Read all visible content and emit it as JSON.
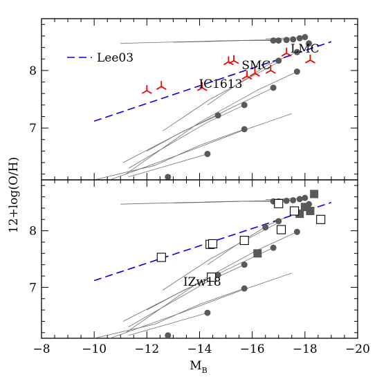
{
  "chart_data": {
    "type": "scatter",
    "xlabel": "M",
    "xlabel_sub": "B",
    "ylabel": "12+log(O/H)",
    "xlim": [
      -8,
      -20
    ],
    "x_ticks": [
      -8,
      -10,
      -12,
      -14,
      -16,
      -18,
      -20
    ],
    "x_tick_labels": [
      "−8",
      "−10",
      "−12",
      "−14",
      "−16",
      "−18",
      "−20"
    ],
    "panels": [
      {
        "ylim": [
          6.1,
          8.9
        ],
        "y_ticks": [
          7,
          8
        ],
        "y_tick_labels": [
          "7",
          "8"
        ],
        "legend": {
          "label": "Lee03",
          "position": "top-left"
        },
        "annotations": [
          {
            "text": "LMC",
            "x": -18.0,
            "y": 8.31
          },
          {
            "text": "SMC",
            "x": -16.15,
            "y": 8.02
          },
          {
            "text": "IC1613",
            "x": -14.8,
            "y": 7.7
          }
        ],
        "lee03_fit": {
          "x": [
            -10,
            -19
          ],
          "y": [
            7.12,
            8.5
          ]
        },
        "model_tracks": [
          {
            "x": [
              -16.8,
              -15.6,
              -13.5,
              -11.8,
              -11.0
            ],
            "y": [
              8.52,
              8.52,
              8.5,
              8.48,
              8.47
            ]
          },
          {
            "x": [
              -17.0,
              -15.6,
              -14.0,
              -13.0
            ],
            "y": [
              8.53,
              8.52,
              8.5,
              8.49
            ]
          },
          {
            "x": [
              -17.6,
              -16.5,
              -15.2,
              -14.2
            ],
            "y": [
              8.54,
              8.53,
              8.52,
              8.51
            ]
          },
          {
            "x": [
              -17.8,
              -17.2,
              -16.5
            ],
            "y": [
              8.57,
              8.56,
              8.55
            ]
          },
          {
            "x": [
              -18.05,
              -17.9
            ],
            "y": [
              8.6,
              8.59
            ]
          },
          {
            "x": [
              -17.7,
              -16.6,
              -15.4,
              -14.3
            ],
            "y": [
              8.32,
              8.1,
              7.75,
              7.4
            ]
          },
          {
            "x": [
              -17.1,
              -16.0,
              -14.4,
              -12.6
            ],
            "y": [
              8.17,
              7.9,
              7.5,
              6.95
            ]
          },
          {
            "x": [
              -17.7,
              -16.2,
              -14.0,
              -11.2
            ],
            "y": [
              7.98,
              7.66,
              7.1,
              6.2
            ]
          },
          {
            "x": [
              -16.8,
              -15.2,
              -13.2,
              -11.1
            ],
            "y": [
              7.7,
              7.35,
              6.9,
              6.4
            ]
          },
          {
            "x": [
              -14.7,
              -13.4,
              -12.0
            ],
            "y": [
              7.22,
              6.95,
              6.6
            ]
          },
          {
            "x": [
              -15.7,
              -14.3,
              -12.8,
              -11.3
            ],
            "y": [
              7.4,
              7.1,
              6.7,
              6.3
            ]
          },
          {
            "x": [
              -15.7,
              -14.0,
              -12.3,
              -10.0
            ],
            "y": [
              6.98,
              6.7,
              6.35,
              6.1
            ]
          },
          {
            "x": [
              -17.5,
              -15.6,
              -13.3,
              -10.6
            ],
            "y": [
              7.25,
              6.95,
              6.55,
              6.1
            ]
          },
          {
            "x": [
              -14.3,
              -12.8,
              -11.3
            ],
            "y": [
              6.55,
              6.35,
              6.15
            ]
          }
        ],
        "circles": [
          {
            "x": -16.8,
            "y": 8.52
          },
          {
            "x": -17.0,
            "y": 8.52
          },
          {
            "x": -17.3,
            "y": 8.53
          },
          {
            "x": -17.55,
            "y": 8.54
          },
          {
            "x": -17.8,
            "y": 8.56
          },
          {
            "x": -18.0,
            "y": 8.58
          },
          {
            "x": -18.15,
            "y": 8.47
          },
          {
            "x": -17.7,
            "y": 8.32
          },
          {
            "x": -17.0,
            "y": 8.17
          },
          {
            "x": -17.7,
            "y": 7.98
          },
          {
            "x": -16.8,
            "y": 7.7
          },
          {
            "x": -14.7,
            "y": 7.22
          },
          {
            "x": -15.7,
            "y": 7.4
          },
          {
            "x": -15.7,
            "y": 6.98
          },
          {
            "x": -14.3,
            "y": 6.55
          },
          {
            "x": -12.8,
            "y": 6.15
          }
        ],
        "observed_tripods": [
          {
            "x": -12.0,
            "y": 7.65
          },
          {
            "x": -12.55,
            "y": 7.72
          },
          {
            "x": -14.1,
            "y": 7.7
          },
          {
            "x": -15.1,
            "y": 8.15
          },
          {
            "x": -15.3,
            "y": 8.17
          },
          {
            "x": -15.8,
            "y": 7.9
          },
          {
            "x": -16.1,
            "y": 7.95
          },
          {
            "x": -16.7,
            "y": 8.0
          },
          {
            "x": -17.3,
            "y": 8.3
          },
          {
            "x": -18.2,
            "y": 8.18
          }
        ]
      },
      {
        "ylim": [
          6.1,
          8.9
        ],
        "y_ticks": [
          7,
          8
        ],
        "y_tick_labels": [
          "7",
          "8"
        ],
        "annotations": [
          {
            "text": "IZw18",
            "x": -14.1,
            "y": 7.03
          }
        ],
        "lee03_fit": {
          "x": [
            -10,
            -19
          ],
          "y": [
            7.12,
            8.5
          ]
        },
        "model_tracks": [
          {
            "x": [
              -16.8,
              -15.6,
              -13.5,
              -11.8,
              -11.0
            ],
            "y": [
              8.52,
              8.52,
              8.5,
              8.48,
              8.47
            ]
          },
          {
            "x": [
              -17.0,
              -15.6,
              -14.0,
              -13.0
            ],
            "y": [
              8.53,
              8.52,
              8.5,
              8.49
            ]
          },
          {
            "x": [
              -17.6,
              -16.5,
              -15.2,
              -14.2
            ],
            "y": [
              8.54,
              8.53,
              8.52,
              8.51
            ]
          },
          {
            "x": [
              -17.8,
              -17.2,
              -16.5
            ],
            "y": [
              8.57,
              8.56,
              8.55
            ]
          },
          {
            "x": [
              -18.05,
              -17.9
            ],
            "y": [
              8.6,
              8.59
            ]
          },
          {
            "x": [
              -17.7,
              -16.6,
              -15.4,
              -14.3
            ],
            "y": [
              8.32,
              8.1,
              7.75,
              7.4
            ]
          },
          {
            "x": [
              -17.1,
              -16.0,
              -14.4,
              -12.6
            ],
            "y": [
              8.17,
              7.9,
              7.5,
              6.95
            ]
          },
          {
            "x": [
              -17.7,
              -16.2,
              -14.0,
              -11.2
            ],
            "y": [
              7.98,
              7.66,
              7.1,
              6.2
            ]
          },
          {
            "x": [
              -16.8,
              -15.2,
              -13.2,
              -11.1
            ],
            "y": [
              7.7,
              7.35,
              6.9,
              6.4
            ]
          },
          {
            "x": [
              -14.7,
              -13.4,
              -12.0
            ],
            "y": [
              7.22,
              6.95,
              6.6
            ]
          },
          {
            "x": [
              -15.7,
              -14.3,
              -12.8,
              -11.3
            ],
            "y": [
              7.4,
              7.1,
              6.7,
              6.3
            ]
          },
          {
            "x": [
              -15.7,
              -14.0,
              -12.3,
              -10.0
            ],
            "y": [
              6.98,
              6.7,
              6.35,
              6.1
            ]
          },
          {
            "x": [
              -17.5,
              -15.6,
              -13.3,
              -10.6
            ],
            "y": [
              7.25,
              6.95,
              6.55,
              6.1
            ]
          },
          {
            "x": [
              -14.3,
              -12.8,
              -11.3
            ],
            "y": [
              6.55,
              6.35,
              6.15
            ]
          }
        ],
        "circles": [
          {
            "x": -16.8,
            "y": 8.52
          },
          {
            "x": -17.0,
            "y": 8.52
          },
          {
            "x": -17.3,
            "y": 8.53
          },
          {
            "x": -17.55,
            "y": 8.54
          },
          {
            "x": -17.8,
            "y": 8.56
          },
          {
            "x": -18.0,
            "y": 8.58
          },
          {
            "x": -18.15,
            "y": 8.47
          },
          {
            "x": -17.7,
            "y": 8.32
          },
          {
            "x": -17.0,
            "y": 8.17
          },
          {
            "x": -17.7,
            "y": 7.98
          },
          {
            "x": -16.8,
            "y": 7.7
          },
          {
            "x": -16.5,
            "y": 8.06
          },
          {
            "x": -14.7,
            "y": 7.22
          },
          {
            "x": -15.7,
            "y": 7.4
          },
          {
            "x": -15.7,
            "y": 6.98
          },
          {
            "x": -14.3,
            "y": 6.55
          },
          {
            "x": -12.8,
            "y": 6.15
          }
        ],
        "filled_squares": [
          {
            "x": -18.35,
            "y": 8.65
          },
          {
            "x": -18.0,
            "y": 8.42
          },
          {
            "x": -18.2,
            "y": 8.35
          },
          {
            "x": -17.8,
            "y": 8.3
          },
          {
            "x": -16.2,
            "y": 7.6
          }
        ],
        "open_squares": [
          {
            "x": -12.55,
            "y": 7.53
          },
          {
            "x": -14.4,
            "y": 7.76
          },
          {
            "x": -14.5,
            "y": 7.77
          },
          {
            "x": -14.45,
            "y": 7.18
          },
          {
            "x": -15.7,
            "y": 7.83
          },
          {
            "x": -17.1,
            "y": 8.02
          },
          {
            "x": -17.0,
            "y": 8.48
          },
          {
            "x": -17.6,
            "y": 8.35
          },
          {
            "x": -18.6,
            "y": 8.2
          }
        ]
      }
    ]
  }
}
